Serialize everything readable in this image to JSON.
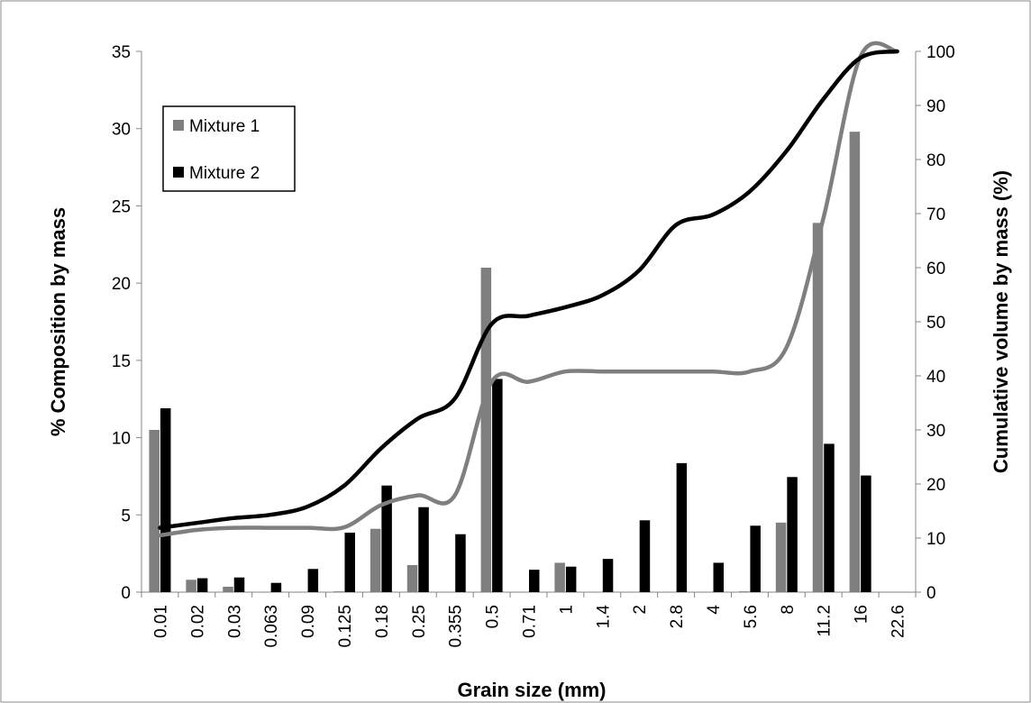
{
  "chart_data": {
    "type": "bar",
    "categories": [
      "0.01",
      "0.02",
      "0.03",
      "0.063",
      "0.09",
      "0.125",
      "0.18",
      "0.25",
      "0.355",
      "0.5",
      "0.71",
      "1",
      "1.4",
      "2",
      "2.8",
      "4",
      "5.6",
      "8",
      "11.2",
      "16",
      "22.6"
    ],
    "xlabel": "Grain size (mm)",
    "ylabel": "% Composition by mass",
    "y2label": "Cumulative volume by mass (%)",
    "ylim": [
      0,
      35
    ],
    "yticks": [
      0,
      5,
      10,
      15,
      20,
      25,
      30,
      35
    ],
    "y2lim": [
      0,
      100
    ],
    "y2ticks": [
      0,
      10,
      20,
      30,
      40,
      50,
      60,
      70,
      80,
      90,
      100
    ],
    "grid": false,
    "legend_position": "top-left",
    "series": [
      {
        "name": "Mixture 1",
        "type": "bar",
        "axis": "left",
        "color": "#7f7f7f",
        "values": [
          10.5,
          0.8,
          0.35,
          0,
          0,
          0.05,
          4.1,
          1.75,
          0,
          21.0,
          0,
          1.9,
          0,
          0,
          0,
          0,
          0.05,
          4.5,
          23.9,
          29.8,
          0
        ]
      },
      {
        "name": "Mixture 2",
        "type": "bar",
        "axis": "left",
        "color": "#000000",
        "values": [
          11.9,
          0.9,
          0.95,
          0.6,
          1.5,
          3.85,
          6.9,
          5.5,
          3.75,
          13.8,
          1.45,
          1.65,
          2.15,
          4.65,
          8.35,
          1.9,
          4.3,
          7.45,
          9.6,
          7.55,
          0
        ]
      },
      {
        "name": "Mixture 1",
        "type": "line",
        "axis": "right",
        "color": "#7f7f7f",
        "values": [
          10.5,
          11.5,
          11.9,
          11.9,
          11.9,
          12.0,
          16.1,
          17.9,
          17.9,
          38.9,
          38.9,
          40.8,
          40.8,
          40.8,
          40.8,
          40.8,
          40.8,
          45.3,
          69.2,
          99.0,
          100
        ]
      },
      {
        "name": "Mixture 2",
        "type": "line",
        "axis": "right",
        "color": "#000000",
        "values": [
          11.9,
          12.8,
          13.7,
          14.3,
          15.8,
          19.7,
          26.6,
          32.1,
          35.8,
          49.6,
          51.1,
          52.7,
          54.9,
          59.5,
          67.9,
          69.8,
          74.1,
          81.6,
          91.2,
          98.8,
          100
        ]
      }
    ]
  }
}
